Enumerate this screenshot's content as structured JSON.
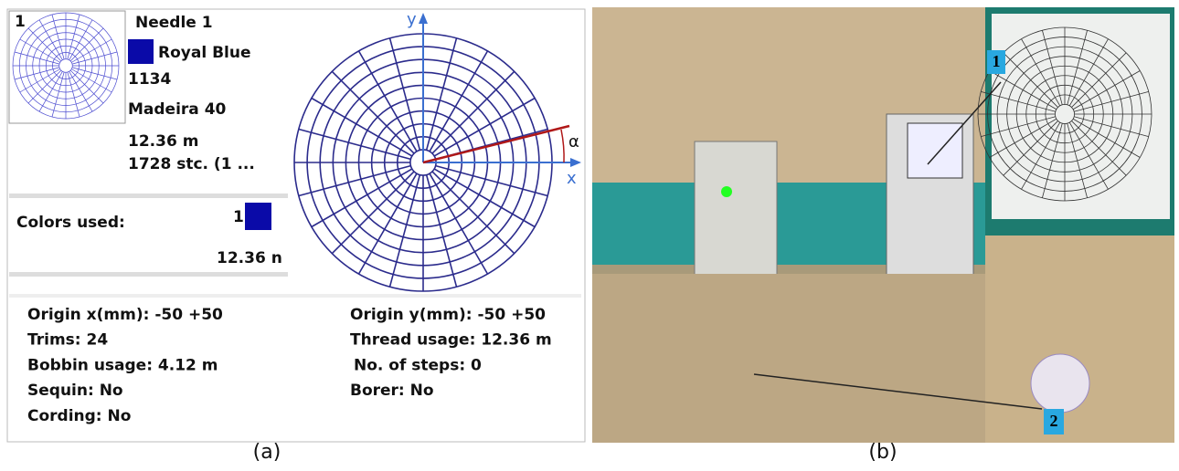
{
  "panel_a": {
    "needle": {
      "icon": "1",
      "title": "Needle 1",
      "color_name": "Royal Blue",
      "code": "1134",
      "thread": "Madeira 40",
      "length": "12.36 m",
      "stitches": "1728 stc. (1 ..."
    },
    "colors_used": {
      "label": "Colors used:",
      "icon": "1",
      "length": "12.36 n"
    },
    "diagram": {
      "y_axis": "y",
      "x_axis": "x",
      "angle": "α"
    },
    "info_left": [
      "Origin x(mm): -50 +50",
      "Trims: 24",
      "Bobbin usage: 4.12 m",
      "Sequin: No",
      "Cording: No"
    ],
    "info_right": [
      "Origin y(mm): -50 +50",
      "Thread usage: 12.36 m",
      "No. of steps: 0",
      "Borer: No"
    ],
    "caption": "(a)"
  },
  "panel_b": {
    "callouts": [
      "1",
      "2"
    ],
    "caption": "(b)"
  }
}
